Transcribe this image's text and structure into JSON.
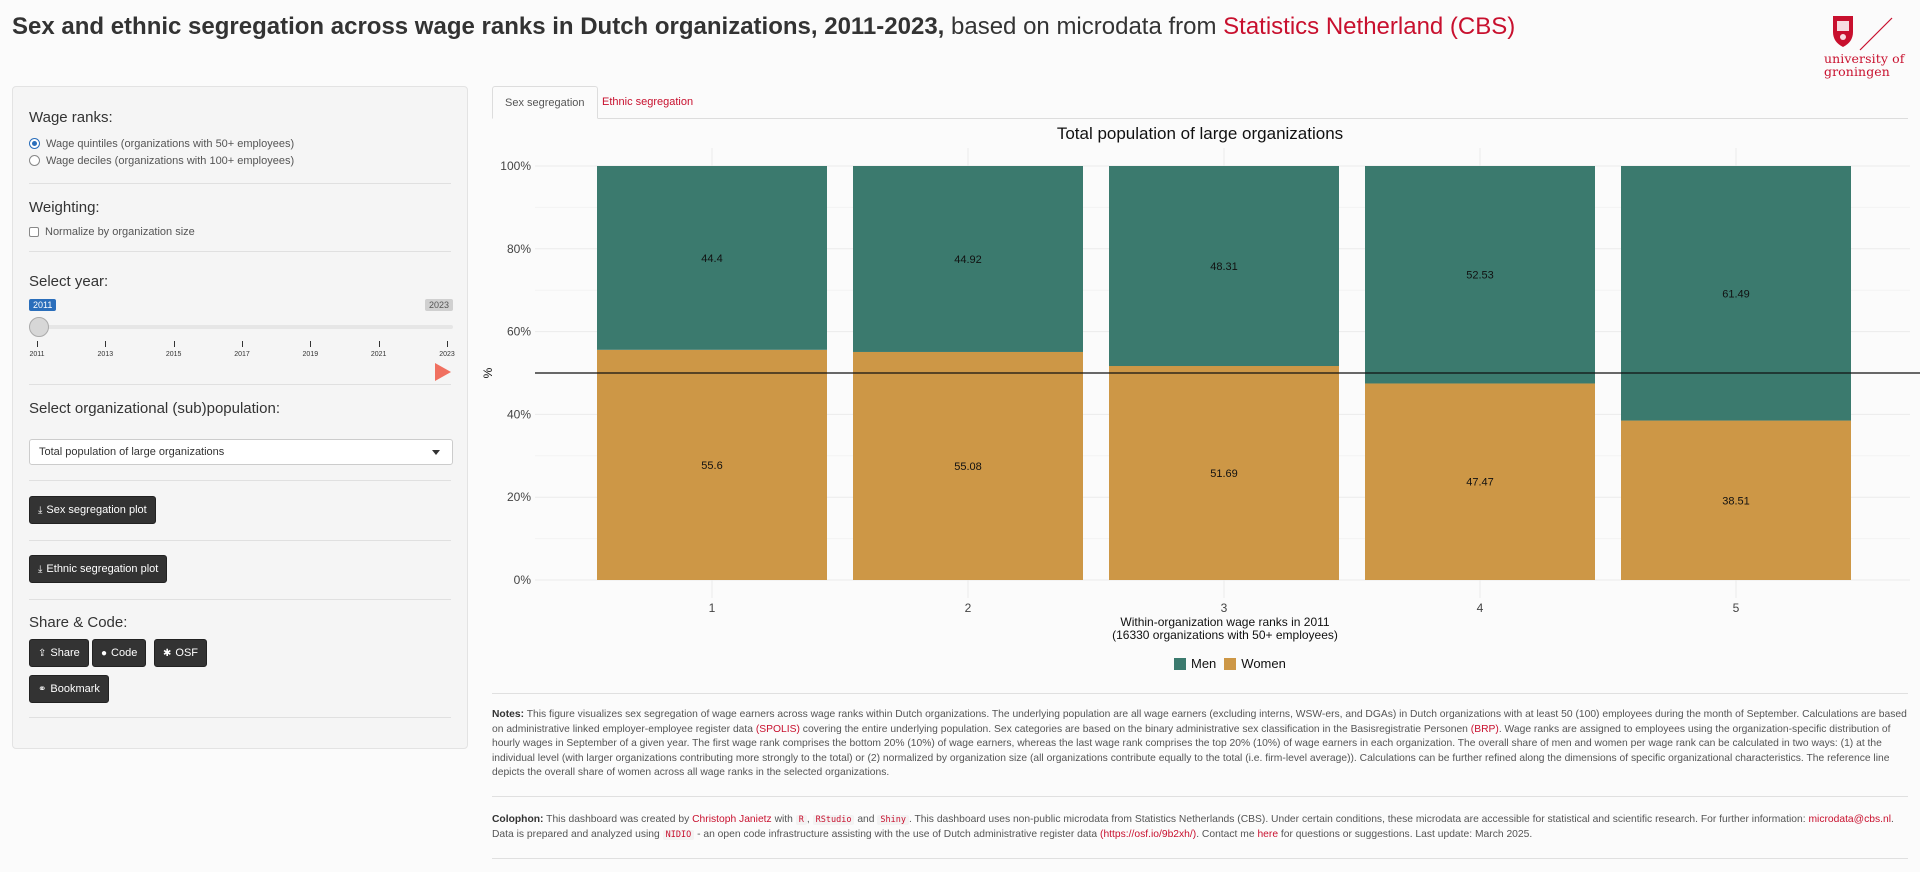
{
  "header": {
    "title_bold": "Sex and ethnic segregation across wage ranks in Dutch organizations, 2011-2023,",
    "title_normal": "based on microdata from",
    "title_link": "Statistics Netherland (CBS)"
  },
  "logo": {
    "line1": "university of",
    "line2": "groningen"
  },
  "sidebar": {
    "wage_ranks": {
      "title": "Wage ranks:",
      "options": [
        "Wage quintiles (organizations with 50+ employees)",
        "Wage deciles (organizations with 100+ employees)"
      ],
      "selected": 0
    },
    "weighting": {
      "title": "Weighting:",
      "checkbox_label": "Normalize by organization size",
      "checked": false
    },
    "year": {
      "title": "Select year:",
      "min": "2011",
      "max": "2023",
      "value": "2011",
      "ticks": [
        "2011",
        "2013",
        "2015",
        "2017",
        "2019",
        "2021",
        "2023"
      ]
    },
    "population": {
      "title": "Select organizational (sub)population:",
      "selected": "Total population of large organizations"
    },
    "buttons": {
      "sex_plot": "Sex segregation plot",
      "ethnic_plot": "Ethnic segregation plot",
      "share_title": "Share & Code:",
      "share": "Share",
      "code": "Code",
      "osf": "OSF",
      "bookmark": "Bookmark"
    }
  },
  "tabs": [
    {
      "label": "Sex segregation",
      "active": true
    },
    {
      "label": "Ethnic segregation",
      "active": false
    }
  ],
  "chart_data": {
    "type": "bar",
    "stacked": true,
    "title": "Total population of large organizations",
    "categories": [
      "1",
      "2",
      "3",
      "4",
      "5"
    ],
    "series": [
      {
        "name": "Men",
        "color": "#3b7a6e",
        "values": [
          44.4,
          44.92,
          48.31,
          52.53,
          61.49
        ]
      },
      {
        "name": "Women",
        "color": "#cd9746",
        "values": [
          55.6,
          55.08,
          51.69,
          47.47,
          38.51
        ]
      }
    ],
    "xlabel": "Within-organization wage ranks in 2011",
    "xlabel_sub": "(16330 organizations with 50+ employees)",
    "ylabel": "%",
    "ylim": [
      0,
      100
    ],
    "yticks": [
      "0%",
      "20%",
      "40%",
      "60%",
      "80%",
      "100%"
    ],
    "reference_line": 50,
    "legend_position": "bottom",
    "grid": true
  },
  "notes": {
    "label": "Notes:",
    "p1": "This figure visualizes sex segregation of wage earners across wage ranks within Dutch organizations. The underlying population are all wage earners (excluding interns, WSW-ers, and DGAs) in Dutch organizations with at least 50 (100) employees during the month of September. Calculations are based on administrative linked employer-employee register data",
    "link1": "(SPOLIS)",
    "p2": "covering the entire underlying population. Sex categories are based on the binary administrative sex classification in the Basisregistratie Personen",
    "link2": "(BRP)",
    "p3": ". Wage ranks are assigned to employees using the organization-specific distribution of hourly wages in September of a given year. The first wage rank comprises the bottom 20% (10%) of wage earners, whereas the last wage rank comprises the top 20% (10%) of wage earners in each organization. The overall share of men and women per wage rank can be calculated in two ways: (1) at the individual level (with larger organizations contributing more strongly to the total) or (2) normalized by organization size (all organizations contribute equally to the total (i.e. firm-level average)). Calculations can be further refined along the dimensions of specific organizational characteristics. The reference line depicts the overall share of women across all wage ranks in the selected organizations."
  },
  "colophon": {
    "label": "Colophon:",
    "t1": "This dashboard was created by",
    "author": "Christoph Janietz",
    "t2": "with",
    "code1": "R",
    "code2": "RStudio",
    "t3": "and",
    "code3": "Shiny",
    "t4": ". This dashboard uses non-public microdata from Statistics Netherlands (CBS). Under certain conditions, these microdata are accessible for statistical and scientific research. For further information:",
    "email": "microdata@cbs.nl",
    "t5": ". Data is prepared and analyzed using",
    "code4": "NIDIO",
    "t6": "- an open code infrastructure assisting with the use of Dutch administrative register data",
    "url": "(https://osf.io/9b2xh/)",
    "t7": ". Contact me",
    "here": "here",
    "t8": "for questions or suggestions. Last update: March 2025."
  }
}
